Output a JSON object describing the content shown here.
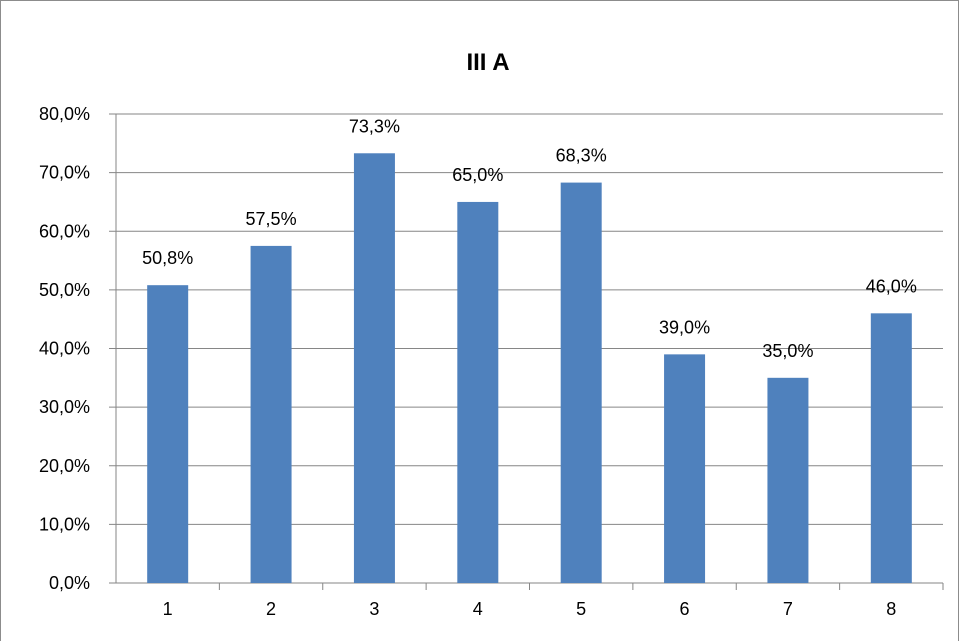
{
  "chart_data": {
    "type": "bar",
    "title": "III A",
    "xlabel": "",
    "ylabel": "",
    "categories": [
      "1",
      "2",
      "3",
      "4",
      "5",
      "6",
      "7",
      "8"
    ],
    "values": [
      50.8,
      57.5,
      73.3,
      65.0,
      68.3,
      39.0,
      35.0,
      46.0
    ],
    "value_labels": [
      "50,8%",
      "57,5%",
      "73,3%",
      "65,0%",
      "68,3%",
      "39,0%",
      "35,0%",
      "46,0%"
    ],
    "ylim": [
      0,
      80
    ],
    "y_ticks": [
      0,
      10,
      20,
      30,
      40,
      50,
      60,
      70,
      80
    ],
    "y_tick_labels": [
      "0,0%",
      "10,0%",
      "20,0%",
      "30,0%",
      "40,0%",
      "50,0%",
      "60,0%",
      "70,0%",
      "80,0%"
    ],
    "grid": true,
    "legend": "none",
    "bar_color": "#4f81bd",
    "grid_color": "#868686"
  }
}
